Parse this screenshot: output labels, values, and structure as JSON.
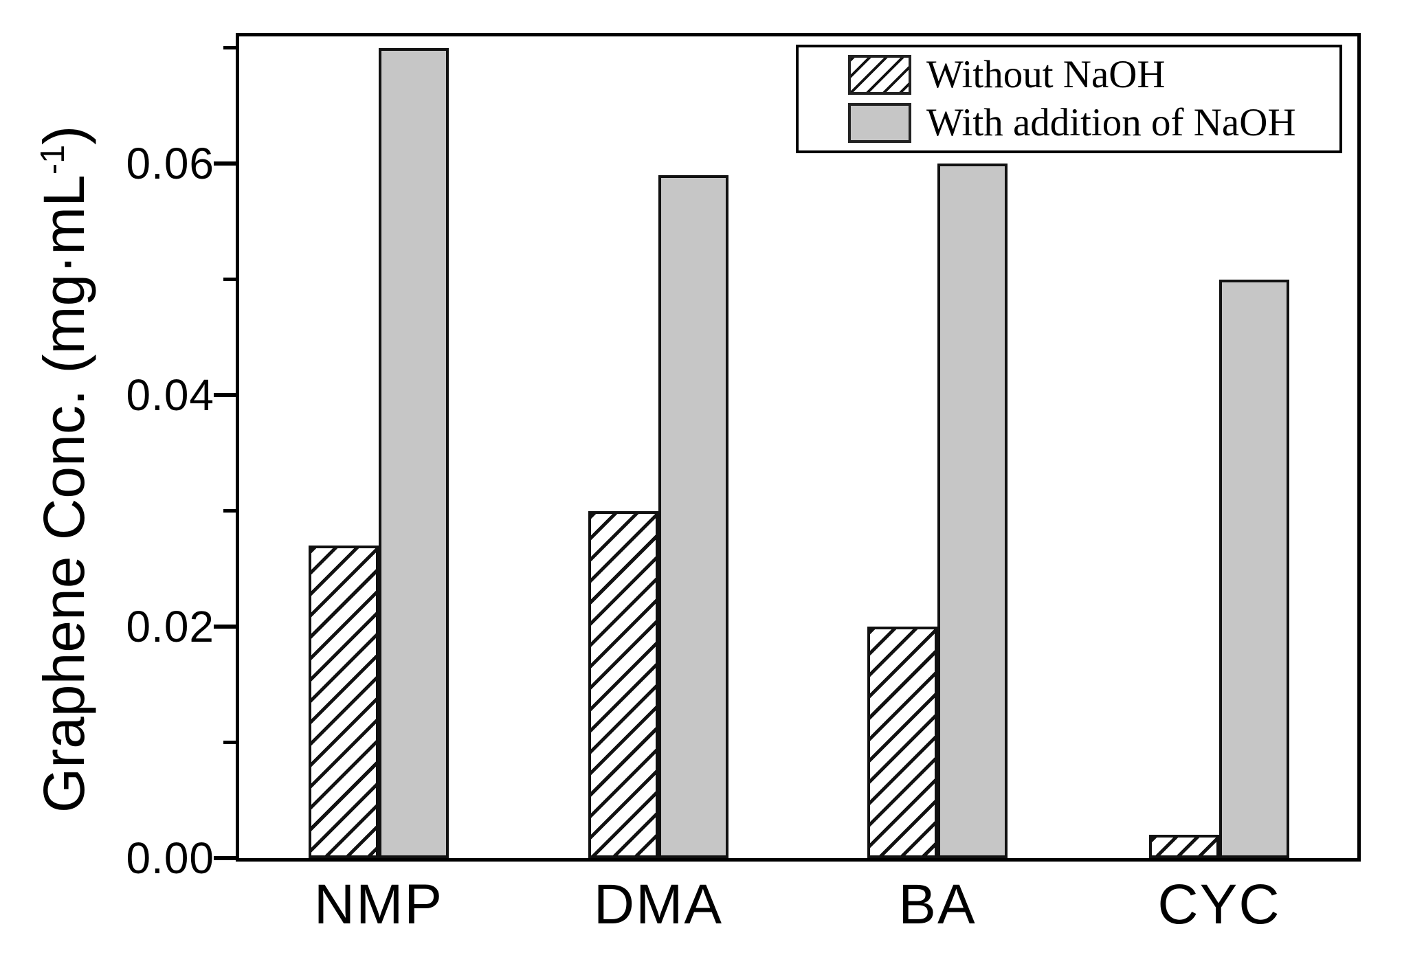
{
  "chart_data": {
    "type": "bar",
    "title": "",
    "ylabel": "Graphene Conc. (mg·mL⁻¹)",
    "ylabel_parts": {
      "prefix": "Graphene Conc. (mg·mL",
      "sup": "-1",
      "suffix": ")"
    },
    "xlabel": "",
    "categories": [
      "NMP",
      "DMA",
      "BA",
      "CYC"
    ],
    "series": [
      {
        "name": "Without NaOH",
        "style": "hatched",
        "values": [
          0.027,
          0.03,
          0.02,
          0.002
        ]
      },
      {
        "name": "With addition of NaOH",
        "style": "solid",
        "values": [
          0.07,
          0.059,
          0.06,
          0.05
        ]
      }
    ],
    "ylim": [
      0,
      0.071
    ],
    "yticks_major": [
      0.0,
      0.02,
      0.04,
      0.06
    ],
    "ytick_labels": [
      "0.00",
      "0.02",
      "0.04",
      "0.06"
    ],
    "yticks_minor": [
      0.01,
      0.03,
      0.05,
      0.07
    ],
    "grid": false,
    "legend_position": "top-right",
    "colors": {
      "bar_gray": "#c6c6c6",
      "axis_black": "#000000",
      "background": "#ffffff"
    }
  },
  "legend": {
    "items": [
      {
        "label": "Without NaOH",
        "swatch": "hatched"
      },
      {
        "label": "With addition of NaOH",
        "swatch": "gray"
      }
    ]
  }
}
